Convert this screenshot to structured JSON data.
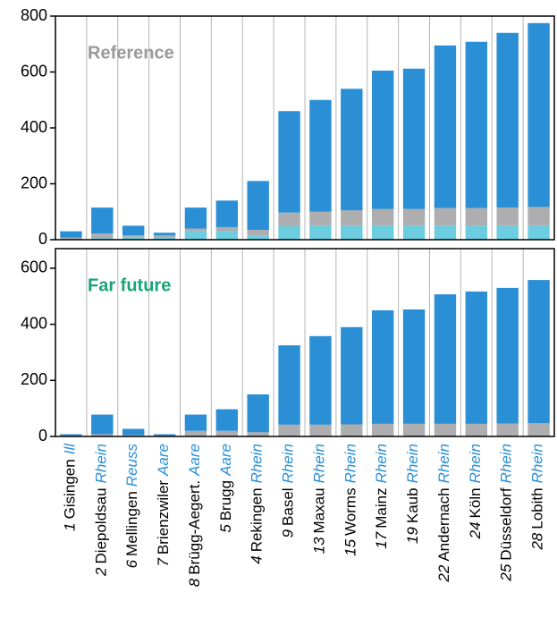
{
  "chart_data": [
    {
      "type": "stacked-bar",
      "annotation": "Reference",
      "annotation_color": "#999999",
      "ylim": [
        0,
        800
      ],
      "yticks": [
        0,
        200,
        400,
        600,
        800
      ],
      "grid": true,
      "series": [
        {
          "color": "#6ccde0",
          "values": [
            3,
            5,
            10,
            8,
            30,
            30,
            15,
            48,
            50,
            50,
            50,
            50,
            50,
            50,
            50,
            50
          ]
        },
        {
          "color": "#aeadb0",
          "values": [
            5,
            17,
            5,
            7,
            10,
            15,
            20,
            49,
            50,
            55,
            60,
            60,
            63,
            63,
            65,
            67
          ]
        },
        {
          "color": "#2b8fd6",
          "values": [
            22,
            93,
            35,
            10,
            75,
            95,
            175,
            363,
            400,
            435,
            495,
            502,
            582,
            595,
            625,
            658
          ]
        }
      ]
    },
    {
      "type": "stacked-bar",
      "annotation": "Far future",
      "annotation_color": "#1aa37a",
      "ylim": [
        0,
        670
      ],
      "yticks": [
        0,
        200,
        400,
        600
      ],
      "grid": true,
      "categories": [
        "Gisingen",
        "Diepoldsau",
        "Mellingen",
        "Brienzwiler",
        "Brügg-Aegert.",
        "Brugg",
        "Rekingen",
        "Basel",
        "Maxau",
        "Worms",
        "Mainz",
        "Kaub",
        "Andernach",
        "Köln",
        "Düsseldorf",
        "Lobith"
      ],
      "category_numbers": [
        "1",
        "2",
        "6",
        "7",
        "8",
        "5",
        "4",
        "9",
        "13",
        "15",
        "17",
        "19",
        "22",
        "24",
        "25",
        "28"
      ],
      "category_rivers": [
        "Ill",
        "Rhein",
        "Reuss",
        "Aare",
        "Aare",
        "Aare",
        "Rhein",
        "Rhein",
        "Rhein",
        "Rhein",
        "Rhein",
        "Rhein",
        "Rhein",
        "Rhein",
        "Rhein",
        "Rhein"
      ],
      "river_color": "#2b8fd6",
      "series": [
        {
          "color": "#aeadb0",
          "values": [
            3,
            8,
            5,
            3,
            20,
            20,
            15,
            42,
            42,
            43,
            45,
            45,
            45,
            45,
            46,
            47
          ]
        },
        {
          "color": "#2b8fd6",
          "values": [
            5,
            70,
            22,
            5,
            58,
            77,
            135,
            283,
            316,
            347,
            405,
            408,
            462,
            472,
            484,
            511
          ]
        }
      ]
    }
  ]
}
